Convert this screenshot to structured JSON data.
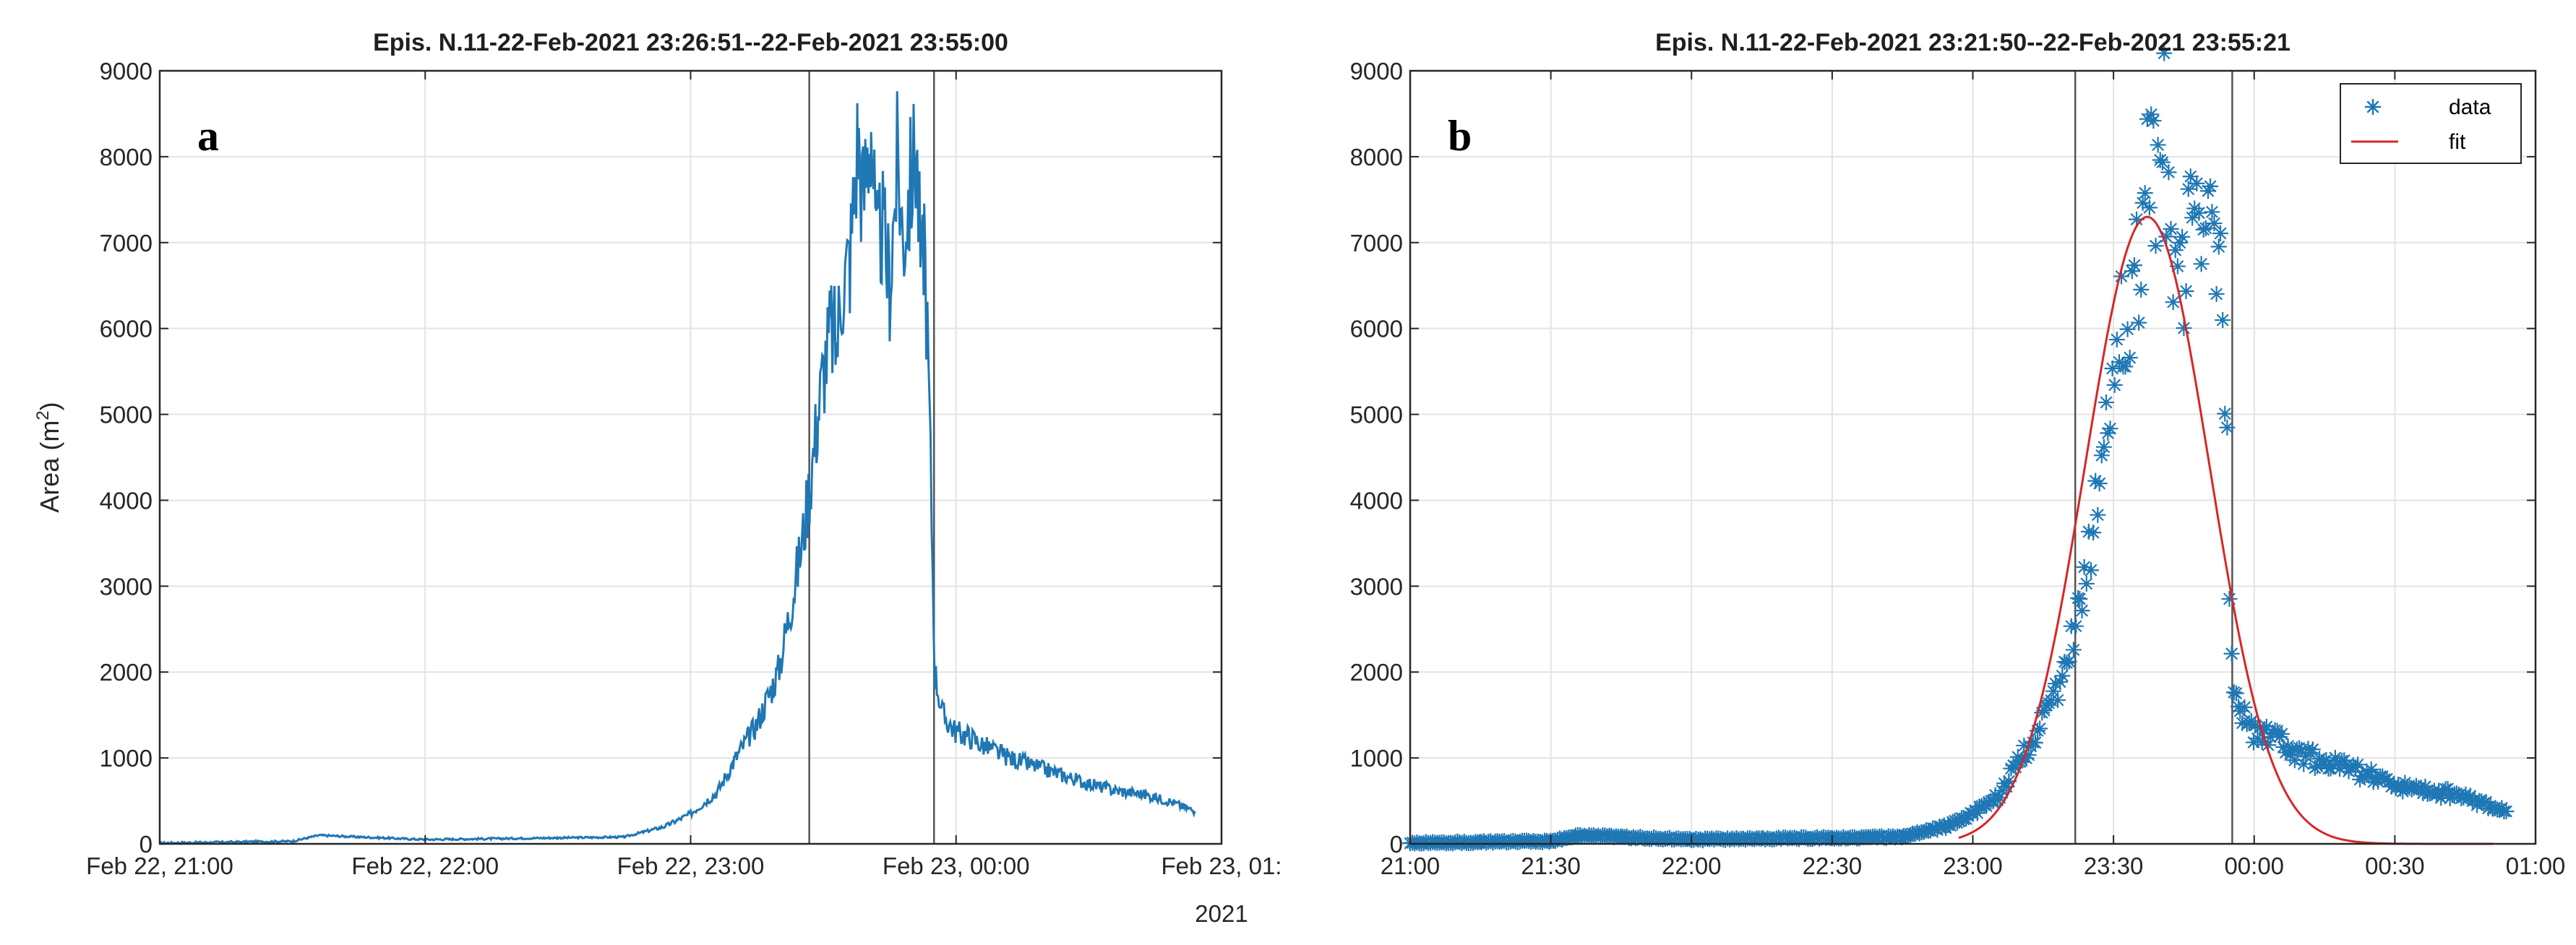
{
  "chart_data": [
    {
      "panel": "a",
      "type": "line",
      "title": "Epis. N.11-22-Feb-2021 23:26:51--22-Feb-2021 23:55:00",
      "xlabel": "",
      "ylabel": "Area (m",
      "ylabel_sup": "2",
      "ylabel_end": ")",
      "xlim": [
        0,
        4
      ],
      "ylim": [
        0,
        9000
      ],
      "x_unit": "hours after 2021-02-22 21:00",
      "xticks": [
        0,
        1,
        2,
        3,
        4
      ],
      "xtick_labels": [
        "Feb 22, 21:00",
        "Feb 22, 22:00",
        "Feb 22, 23:00",
        "Feb 23, 00:00",
        "Feb 23, 01:"
      ],
      "x_sublabel": "2021",
      "yticks": [
        0,
        1000,
        2000,
        3000,
        4000,
        5000,
        6000,
        7000,
        8000,
        9000
      ],
      "grid": true,
      "vlines": [
        2.447,
        2.917
      ],
      "series": [
        {
          "color": "#1f77b4",
          "x": [
            0.0,
            0.25,
            0.5,
            0.6,
            0.75,
            1.0,
            1.25,
            1.5,
            1.75,
            1.9,
            2.0,
            2.1,
            2.17,
            2.25,
            2.33,
            2.38,
            2.42,
            2.45,
            2.48,
            2.5,
            2.53,
            2.55,
            2.57,
            2.6,
            2.63,
            2.65,
            2.68,
            2.7,
            2.72,
            2.75,
            2.78,
            2.8,
            2.82,
            2.85,
            2.87,
            2.88,
            2.9,
            2.92,
            2.95,
            3.0,
            3.05,
            3.1,
            3.2,
            3.3,
            3.4,
            3.5,
            3.6,
            3.7,
            3.8,
            3.9
          ],
          "y": [
            10,
            20,
            30,
            100,
            80,
            50,
            60,
            70,
            80,
            200,
            350,
            600,
            1000,
            1400,
            2000,
            2800,
            3500,
            4200,
            5000,
            5500,
            6000,
            5800,
            6500,
            6800,
            8200,
            7500,
            8400,
            6800,
            7200,
            6500,
            8000,
            7000,
            7500,
            8100,
            6500,
            7200,
            5000,
            2000,
            1500,
            1300,
            1250,
            1150,
            1000,
            900,
            800,
            700,
            620,
            580,
            500,
            380
          ]
        }
      ]
    },
    {
      "panel": "b",
      "type": "scatter",
      "title": "Epis. N.11-22-Feb-2021 23:21:50--22-Feb-2021 23:55:21",
      "xlabel": "",
      "ylabel": "",
      "xlim": [
        0,
        4
      ],
      "ylim": [
        0,
        9000
      ],
      "x_unit": "hours after 21:00",
      "xticks": [
        0,
        0.5,
        1,
        1.5,
        2,
        2.5,
        3,
        3.5,
        4
      ],
      "xtick_labels": [
        "21:00",
        "21:30",
        "22:00",
        "22:30",
        "23:00",
        "23:30",
        "00:00",
        "00:30",
        "01:00"
      ],
      "yticks": [
        0,
        1000,
        2000,
        3000,
        4000,
        5000,
        6000,
        7000,
        8000,
        9000
      ],
      "grid": true,
      "vlines": [
        2.364,
        2.922
      ],
      "legend": {
        "placement": "top-right",
        "entries": [
          "data",
          "fit"
        ]
      },
      "series": [
        {
          "name": "data",
          "color": "#1f77b4",
          "marker": "asterisk",
          "x": [
            0.0,
            0.25,
            0.5,
            0.6,
            0.75,
            1.0,
            1.25,
            1.5,
            1.75,
            1.9,
            2.0,
            2.1,
            2.17,
            2.25,
            2.33,
            2.38,
            2.42,
            2.45,
            2.48,
            2.5,
            2.53,
            2.55,
            2.57,
            2.6,
            2.63,
            2.65,
            2.68,
            2.7,
            2.72,
            2.75,
            2.78,
            2.8,
            2.82,
            2.85,
            2.87,
            2.88,
            2.9,
            2.92,
            2.95,
            3.0,
            3.05,
            3.1,
            3.2,
            3.3,
            3.4,
            3.5,
            3.6,
            3.7,
            3.8,
            3.9
          ],
          "y": [
            10,
            20,
            30,
            100,
            80,
            50,
            60,
            70,
            80,
            200,
            350,
            600,
            1000,
            1400,
            2000,
            2800,
            3500,
            4200,
            5000,
            5500,
            6000,
            5800,
            6500,
            6800,
            8200,
            7500,
            8400,
            6800,
            7200,
            6500,
            8000,
            7000,
            7500,
            8100,
            6500,
            7200,
            5000,
            2000,
            1500,
            1300,
            1250,
            1150,
            1000,
            900,
            800,
            700,
            620,
            580,
            500,
            380
          ]
        },
        {
          "name": "fit",
          "color": "#d62728",
          "model": "gaussian",
          "peak_y": 7300,
          "peak_x": 2.62,
          "sigma_hours": 0.22,
          "x_range": [
            1.95,
            3.85
          ]
        }
      ]
    }
  ]
}
